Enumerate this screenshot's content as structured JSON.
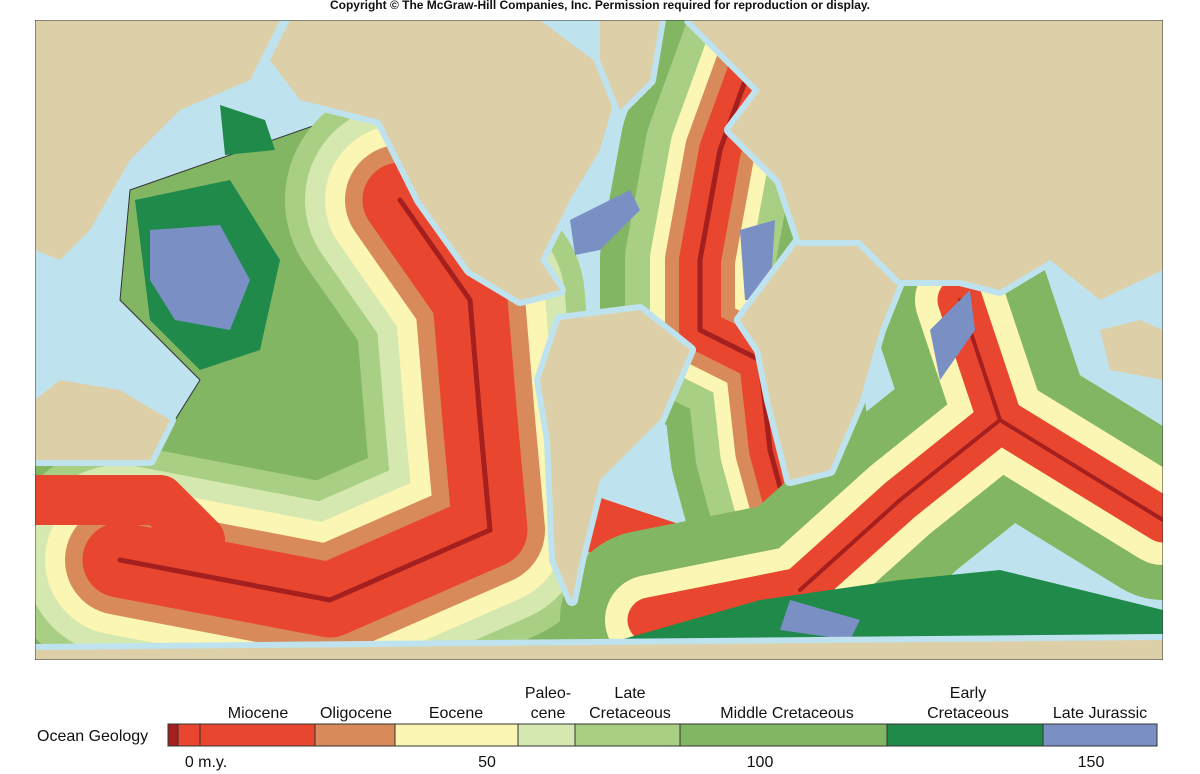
{
  "header": {
    "copyright": "Copyright © The McGraw-Hill Companies, Inc. Permission required for reproduction or display."
  },
  "legend": {
    "title": "Ocean Geology",
    "epochs": [
      [
        "Miocene"
      ],
      [
        "Oligocene"
      ],
      [
        "Eocene"
      ],
      [
        "Paleo-",
        "cene"
      ],
      [
        "Late",
        "Cretaceous"
      ],
      [
        "Middle Cretaceous"
      ],
      [
        "Early",
        "Cretaceous"
      ],
      [
        "Late Jurassic"
      ]
    ],
    "ages": [
      "0 m.y.",
      "50",
      "100",
      "150"
    ]
  }
}
